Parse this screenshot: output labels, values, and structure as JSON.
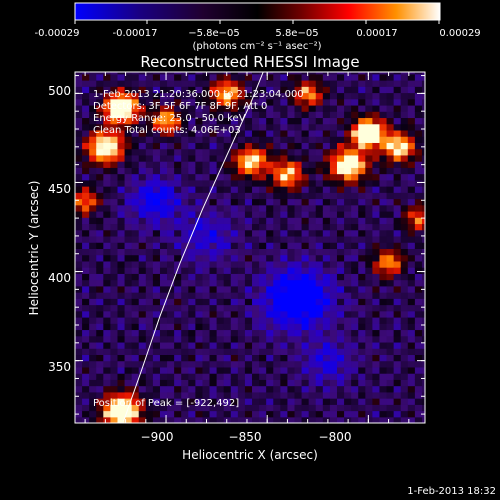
{
  "colorbar": {
    "tick_labels": [
      "-0.00029",
      "-0.00017",
      "−5.8e−05",
      "5.8e−05",
      "0.00017",
      "0.00029"
    ],
    "units_label": "(photons cm⁻² s⁻¹ asec⁻²)",
    "colors": [
      "#0000ff",
      "#1a0060",
      "#000000",
      "#600000",
      "#ff0000",
      "#ff8000",
      "#ffff80",
      "#ffffff"
    ]
  },
  "chart_data": {
    "type": "heatmap",
    "title": "Reconstructed RHESSI Image",
    "xlabel": "Heliocentric X (arcsec)",
    "ylabel": "Heliocentric Y (arcsec)",
    "xlim": [
      -945,
      -772
    ],
    "ylim": [
      315,
      512
    ],
    "x_ticks": [
      -900,
      -850,
      -800
    ],
    "y_ticks": [
      350,
      400,
      450,
      500
    ],
    "x_tick_labels": [
      "−900",
      "−850",
      "−800"
    ],
    "y_tick_labels": [
      "350",
      "400",
      "450",
      "500"
    ],
    "limb_curve": [
      [
        -921,
        316
      ],
      [
        -912,
        345
      ],
      [
        -903,
        375
      ],
      [
        -893,
        405
      ],
      [
        -882,
        435
      ],
      [
        -870,
        465
      ],
      [
        -858,
        495
      ],
      [
        -852,
        512
      ]
    ],
    "peak": [
      -922,
      492
    ],
    "annotations": [
      "1-Feb-2013 21:20:36.000 to 21:23:04.000",
      "Detectors: 3F 5F 6F 7F 8F 9F, Att 0",
      "Energy Range: 25.0 - 50.0 keV",
      "Clean    Total counts: 4.06E+03",
      "Position of Peak = [-922,492]"
    ]
  },
  "footer": {
    "timestamp": "1-Feb-2013 18:32"
  }
}
